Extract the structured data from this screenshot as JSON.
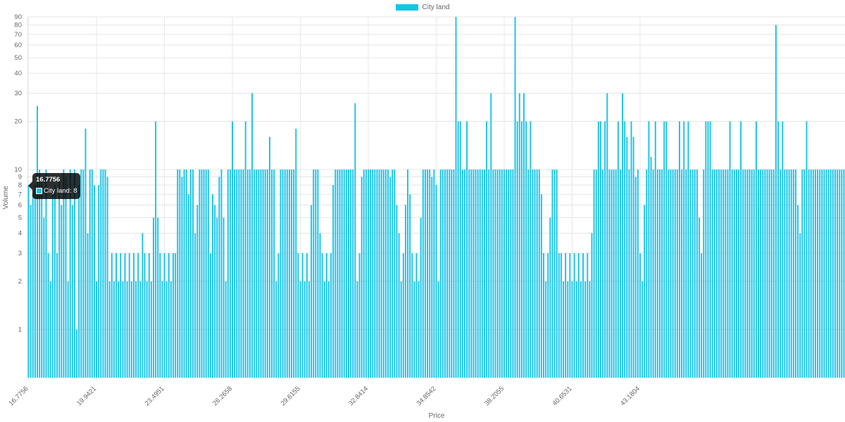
{
  "chart_data": {
    "type": "bar",
    "scale": "logarithmic",
    "xlabel": "Price",
    "ylabel": "Volume",
    "legend": {
      "position": "top",
      "series_name": "City land"
    },
    "color": "#17c4e8",
    "ylim": [
      0.5,
      90
    ],
    "y_ticks": [
      "90",
      "80",
      "70",
      "60",
      "50",
      "40",
      "30",
      "20",
      "10",
      "9",
      "8",
      "7",
      "6",
      "5",
      "4",
      "3",
      "2",
      "1"
    ],
    "x_tick_labels": [
      "16.7756",
      "19.9421",
      "23.4951",
      "26.2658",
      "29.6155",
      "32.8414",
      "34.8542",
      "38.2055",
      "40.6531",
      "43.1804"
    ],
    "x_tick_positions": [
      0,
      31,
      62,
      93,
      124,
      155,
      186,
      217,
      248,
      279
    ],
    "values": [
      8,
      6,
      7,
      8,
      25,
      10,
      9,
      5,
      10,
      3,
      2,
      7,
      8,
      3,
      9,
      6,
      10,
      9,
      2,
      10,
      6,
      10,
      1,
      8,
      10,
      10,
      18,
      4,
      10,
      10,
      8,
      2,
      8,
      10,
      10,
      10,
      9,
      2,
      3,
      2,
      3,
      2,
      3,
      2,
      3,
      2,
      3,
      2,
      3,
      2,
      3,
      2,
      4,
      3,
      2,
      3,
      2,
      5,
      20,
      5,
      3,
      2,
      3,
      2,
      3,
      2,
      3,
      3,
      10,
      10,
      9,
      10,
      10,
      7,
      10,
      10,
      4,
      6,
      10,
      10,
      10,
      10,
      10,
      3,
      7,
      6,
      5,
      9,
      10,
      5,
      2,
      10,
      10,
      20,
      10,
      10,
      10,
      10,
      10,
      20,
      10,
      10,
      30,
      10,
      10,
      10,
      10,
      10,
      10,
      10,
      16,
      10,
      10,
      2,
      3,
      10,
      10,
      10,
      10,
      10,
      10,
      10,
      18,
      3,
      2,
      3,
      2,
      3,
      2,
      6,
      10,
      10,
      10,
      4,
      3,
      2,
      3,
      2,
      3,
      8,
      10,
      10,
      10,
      10,
      10,
      10,
      10,
      10,
      10,
      26,
      2,
      3,
      9,
      10,
      10,
      10,
      10,
      10,
      10,
      10,
      10,
      10,
      10,
      10,
      10,
      9,
      10,
      10,
      6,
      4,
      2,
      3,
      6,
      10,
      7,
      3,
      2,
      3,
      2,
      5,
      10,
      10,
      10,
      10,
      9,
      10,
      8,
      2,
      10,
      10,
      10,
      10,
      10,
      10,
      10,
      90,
      20,
      20,
      10,
      10,
      20,
      10,
      10,
      10,
      10,
      10,
      10,
      10,
      10,
      20,
      10,
      30,
      10,
      10,
      10,
      10,
      10,
      10,
      10,
      10,
      10,
      10,
      90,
      20,
      30,
      20,
      30,
      20,
      10,
      20,
      10,
      10,
      10,
      10,
      7,
      3,
      2,
      3,
      5,
      10,
      10,
      10,
      3,
      3,
      2,
      3,
      2,
      3,
      2,
      3,
      2,
      3,
      2,
      3,
      2,
      3,
      2,
      4,
      10,
      10,
      20,
      20,
      10,
      20,
      30,
      10,
      10,
      10,
      10,
      20,
      10,
      30,
      20,
      16,
      10,
      20,
      16,
      9,
      10,
      3,
      2,
      6,
      10,
      20,
      12,
      10,
      20,
      10,
      10,
      10,
      20,
      20,
      10,
      10,
      10,
      10,
      10,
      20,
      10,
      20,
      10,
      20,
      10,
      10,
      10,
      10,
      5,
      3,
      10,
      20,
      20,
      20,
      10,
      10,
      10,
      10,
      10,
      10,
      10,
      10,
      20,
      10,
      10,
      10,
      10,
      20,
      10,
      10,
      10,
      10,
      10,
      10,
      20,
      10,
      10,
      10,
      10,
      10,
      10,
      10,
      10,
      80,
      20,
      10,
      20,
      10,
      10,
      10,
      10,
      10,
      10,
      6,
      4,
      10,
      10,
      20,
      10,
      10,
      10,
      10,
      10,
      10,
      10,
      10,
      10,
      10,
      10,
      10,
      10,
      10,
      10,
      10,
      10
    ]
  },
  "tooltip": {
    "title": "16.7756",
    "label": "City land: 8"
  }
}
